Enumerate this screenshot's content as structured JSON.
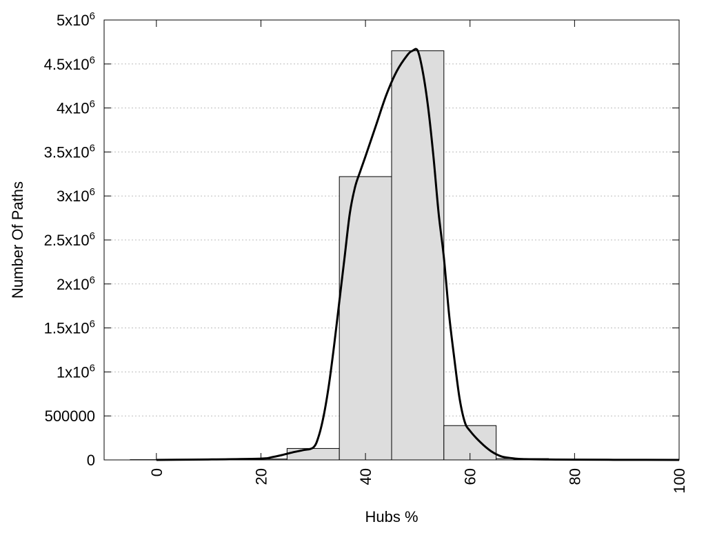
{
  "chart_data": {
    "type": "bar",
    "title": "",
    "xlabel": "Hubs %",
    "ylabel": "Number Of Paths",
    "xlim": [
      -10,
      100
    ],
    "ylim": [
      0,
      5000000
    ],
    "grid": {
      "y": true,
      "x": false
    },
    "x_ticks": [
      {
        "value": 0,
        "label": "0"
      },
      {
        "value": 20,
        "label": "20"
      },
      {
        "value": 40,
        "label": "40"
      },
      {
        "value": 60,
        "label": "60"
      },
      {
        "value": 80,
        "label": "80"
      },
      {
        "value": 100,
        "label": "100"
      }
    ],
    "y_ticks": [
      {
        "value": 0,
        "base": "0",
        "exp": ""
      },
      {
        "value": 500000,
        "base": "500000",
        "exp": ""
      },
      {
        "value": 1000000,
        "base": "1x10",
        "exp": "6"
      },
      {
        "value": 1500000,
        "base": "1.5x10",
        "exp": "6"
      },
      {
        "value": 2000000,
        "base": "2x10",
        "exp": "6"
      },
      {
        "value": 2500000,
        "base": "2.5x10",
        "exp": "6"
      },
      {
        "value": 3000000,
        "base": "3x10",
        "exp": "6"
      },
      {
        "value": 3500000,
        "base": "3.5x10",
        "exp": "6"
      },
      {
        "value": 4000000,
        "base": "4x10",
        "exp": "6"
      },
      {
        "value": 4500000,
        "base": "4.5x10",
        "exp": "6"
      },
      {
        "value": 5000000,
        "base": "5x10",
        "exp": "6"
      }
    ],
    "bars": [
      {
        "x0": -5,
        "x1": 5,
        "value": 3000
      },
      {
        "x0": 5,
        "x1": 15,
        "value": 5000
      },
      {
        "x0": 15,
        "x1": 25,
        "value": 10000
      },
      {
        "x0": 25,
        "x1": 35,
        "value": 130000
      },
      {
        "x0": 35,
        "x1": 45,
        "value": 3220000
      },
      {
        "x0": 45,
        "x1": 55,
        "value": 4650000
      },
      {
        "x0": 55,
        "x1": 65,
        "value": 390000
      },
      {
        "x0": 65,
        "x1": 75,
        "value": 15000
      },
      {
        "x0": 75,
        "x1": 85,
        "value": 5000
      },
      {
        "x0": 85,
        "x1": 95,
        "value": 3000
      },
      {
        "x0": 95,
        "x1": 100,
        "value": 2000
      }
    ],
    "curve": {
      "x": [
        0,
        10,
        20,
        22,
        24,
        26,
        28,
        30,
        31,
        32,
        33,
        34,
        35,
        36,
        37,
        38,
        39,
        40,
        42,
        44,
        46,
        48,
        49,
        50,
        51,
        52,
        53,
        54,
        55,
        56,
        57,
        58,
        59,
        60,
        62,
        64,
        66,
        68,
        70,
        75,
        80,
        90,
        100
      ],
      "y": [
        0,
        5000,
        15000,
        30000,
        55000,
        85000,
        110000,
        140000,
        260000,
        500000,
        850000,
        1300000,
        1800000,
        2300000,
        2800000,
        3100000,
        3280000,
        3450000,
        3800000,
        4150000,
        4420000,
        4600000,
        4650000,
        4650000,
        4400000,
        4000000,
        3450000,
        2800000,
        2300000,
        1650000,
        1150000,
        700000,
        430000,
        330000,
        200000,
        100000,
        40000,
        20000,
        10000,
        5000,
        3000,
        1000,
        0
      ]
    },
    "bar_fill": "#dddddd",
    "bar_stroke": "#000000",
    "curve_color": "#000000"
  }
}
